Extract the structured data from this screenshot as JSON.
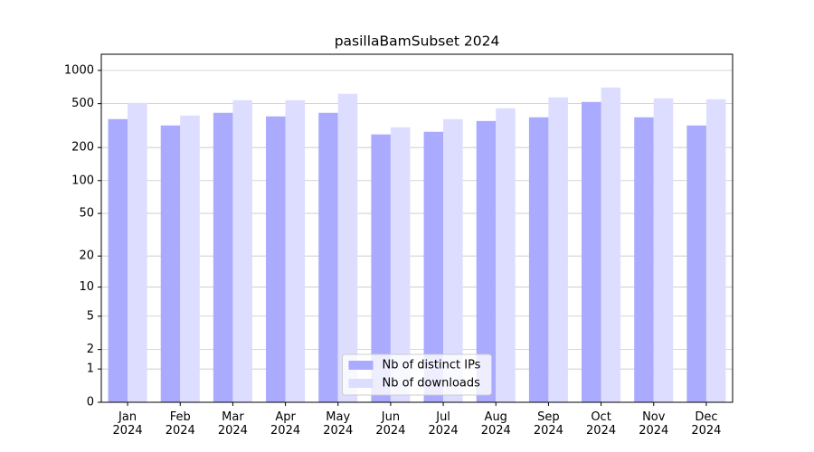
{
  "chart_data": {
    "type": "bar",
    "title": "pasillaBamSubset 2024",
    "categories": [
      "Jan\n2024",
      "Feb\n2024",
      "Mar\n2024",
      "Apr\n2024",
      "May\n2024",
      "Jun\n2024",
      "Jul\n2024",
      "Aug\n2024",
      "Sep\n2024",
      "Oct\n2024",
      "Nov\n2024",
      "Dec\n2024"
    ],
    "series": [
      {
        "name": "Nb of distinct IPs",
        "color": "#aaaaff",
        "values": [
          362,
          317,
          413,
          383,
          413,
          263,
          278,
          348,
          376,
          518,
          376,
          317
        ]
      },
      {
        "name": "Nb of downloads",
        "color": "#ddddff",
        "values": [
          508,
          390,
          538,
          538,
          614,
          305,
          362,
          453,
          569,
          700,
          558,
          548
        ]
      }
    ],
    "yscale": "log1p",
    "ylim": [
      0,
      1400
    ],
    "yticks": [
      0,
      1,
      2,
      5,
      10,
      20,
      50,
      100,
      200,
      500,
      1000
    ],
    "grid": true,
    "legend": "lower center"
  }
}
